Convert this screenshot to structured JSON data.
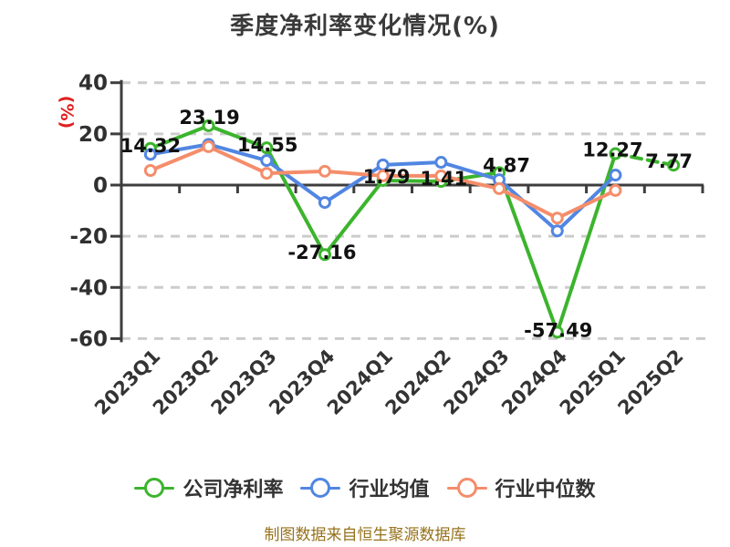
{
  "title": "季度净利率变化情况(%)",
  "y_axis_unit": "(%)",
  "footer_note": "制图数据来自恒生聚源数据库",
  "chart_data": {
    "type": "line",
    "title": "季度净利率变化情况(%)",
    "ylabel": "(%)",
    "xlabel": "",
    "categories": [
      "2023Q1",
      "2023Q2",
      "2023Q3",
      "2023Q4",
      "2024Q1",
      "2024Q2",
      "2024Q3",
      "2024Q4",
      "2025Q1",
      "2025Q2"
    ],
    "series": [
      {
        "name": "公司净利率",
        "color": "#3cb42d",
        "values": [
          14.32,
          23.19,
          14.55,
          -27.16,
          1.79,
          1.41,
          4.87,
          -57.49,
          12.27,
          7.77
        ],
        "point_labels": [
          "14.32",
          "23.19",
          "14.55",
          "-27.16",
          "1.79",
          "1.41",
          "4.87",
          "-57.49",
          "12.27",
          "7.77"
        ],
        "last_segment_style": "dashed"
      },
      {
        "name": "行业均值",
        "color": "#5186e2",
        "values": [
          12.0,
          15.9,
          9.6,
          -6.8,
          7.9,
          8.9,
          2.1,
          -17.9,
          3.9,
          null
        ],
        "point_labels": []
      },
      {
        "name": "行业中位数",
        "color": "#f48d6b",
        "values": [
          5.7,
          15.0,
          4.6,
          5.4,
          3.6,
          3.6,
          -1.4,
          -12.9,
          -2.1,
          null
        ],
        "point_labels": []
      }
    ],
    "ylim": [
      -60,
      40
    ],
    "yticks": [
      40,
      20,
      0,
      -20,
      -40,
      -60
    ],
    "grid": "horizontal dashed gray",
    "legend_position": "bottom",
    "marker": "white-filled circle with colored ring",
    "colors": {
      "axis": "#3d3d3d",
      "gridline": "#cccccc",
      "tick_label": "#303030",
      "data_label": "#111111",
      "title": "#3a3a3a",
      "y_unit_label": "#e01f1f",
      "footer": "#96721c"
    }
  }
}
